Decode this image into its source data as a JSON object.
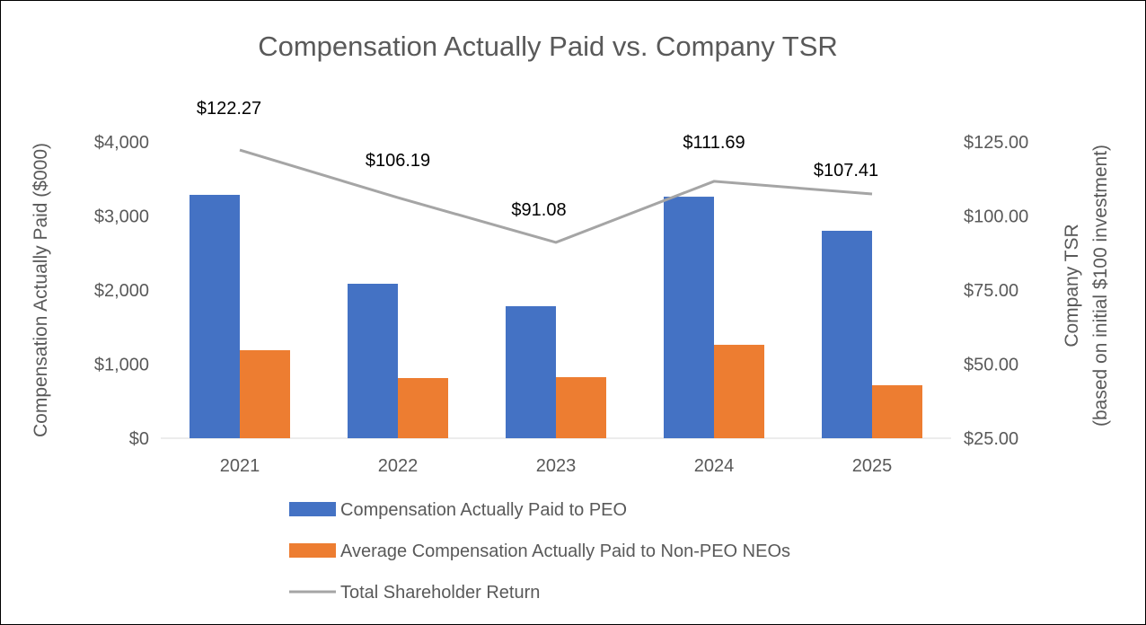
{
  "chart_data": {
    "type": "bar",
    "title": "Compensation Actually Paid vs. Company TSR",
    "categories": [
      "2021",
      "2022",
      "2023",
      "2024",
      "2025"
    ],
    "ylabel": "Compensation Actually Paid ($000)",
    "y2label_line1": "Company TSR",
    "y2label_line2": "(based on initial $100 investment)",
    "ylim": [
      0,
      4000
    ],
    "y2lim": [
      25,
      125
    ],
    "yticks": [
      {
        "v": 0,
        "label": "$0"
      },
      {
        "v": 1000,
        "label": "$1,000"
      },
      {
        "v": 2000,
        "label": "$2,000"
      },
      {
        "v": 3000,
        "label": "$3,000"
      },
      {
        "v": 4000,
        "label": "$4,000"
      }
    ],
    "y2ticks": [
      {
        "v": 25,
        "label": "$25.00"
      },
      {
        "v": 50,
        "label": "$50.00"
      },
      {
        "v": 75,
        "label": "$75.00"
      },
      {
        "v": 100,
        "label": "$100.00"
      },
      {
        "v": 125,
        "label": "$125.00"
      }
    ],
    "series": [
      {
        "name": "Compensation Actually Paid to PEO",
        "kind": "bar",
        "axis": "left",
        "color": "#4472C4",
        "values": [
          3285,
          2085,
          1782,
          3260,
          2800
        ]
      },
      {
        "name": "Average Compensation Actually Paid to Non-PEO NEOs",
        "kind": "bar",
        "axis": "left",
        "color": "#ED7D31",
        "values": [
          1188,
          812,
          824,
          1261,
          715
        ]
      },
      {
        "name": "Total Shareholder Return",
        "kind": "line",
        "axis": "right",
        "color": "#A5A5A5",
        "values": [
          122.27,
          106.19,
          91.08,
          111.69,
          107.41
        ],
        "labels": [
          "$122.27",
          "$106.19",
          "$91.08",
          "$111.69",
          "$107.41"
        ]
      }
    ],
    "grid": false,
    "legend_placement": "bottom"
  }
}
